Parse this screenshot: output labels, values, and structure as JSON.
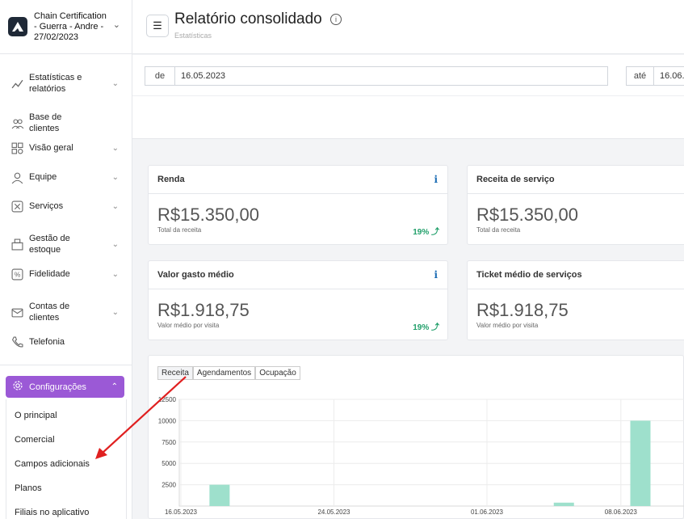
{
  "brand": {
    "name": "Chain Certification - Guerra - Andre - 27/02/2023"
  },
  "sidebar": {
    "items": [
      {
        "label": "Estatísticas e relatórios",
        "icon": "statistics-icon",
        "has_chevron": true
      },
      {
        "label": "Base de clientes",
        "icon": "clients-icon",
        "has_chevron": false
      },
      {
        "label": "Visão geral",
        "icon": "overview-icon",
        "has_chevron": true
      },
      {
        "label": "Equipe",
        "icon": "team-icon",
        "has_chevron": true
      },
      {
        "label": "Serviços",
        "icon": "scissors-icon",
        "has_chevron": true
      },
      {
        "label": "Gestão de estoque",
        "icon": "stock-icon",
        "has_chevron": true
      },
      {
        "label": "Fidelidade",
        "icon": "loyalty-icon",
        "has_chevron": true
      },
      {
        "label": "Contas de clientes",
        "icon": "accounts-icon",
        "has_chevron": true
      },
      {
        "label": "Telefonia",
        "icon": "phone-icon",
        "has_chevron": false
      }
    ],
    "config": {
      "label": "Configurações"
    },
    "config_sub": [
      "O principal",
      "Comercial",
      "Campos adicionais",
      "Planos",
      "Filiais no aplicativo"
    ]
  },
  "header": {
    "title": "Relatório consolidado",
    "breadcrumb": "Estatísticas"
  },
  "filters": {
    "from_label": "de",
    "from_value": "16.05.2023",
    "to_label": "até",
    "to_value": "16.06."
  },
  "cards": [
    {
      "title": "Renda",
      "amount": "R$15.350,00",
      "sub": "Total da receita",
      "pct": "19%",
      "has_info": true
    },
    {
      "title": "Receita de serviço",
      "amount": "R$15.350,00",
      "sub": "Total da receita",
      "pct": "",
      "has_info": false
    },
    {
      "title": "Valor gasto médio",
      "amount": "R$1.918,75",
      "sub": "Valor médio por visita",
      "pct": "19%",
      "has_info": true
    },
    {
      "title": "Ticket médio de serviços",
      "amount": "R$1.918,75",
      "sub": "Valor médio por visita",
      "pct": "",
      "has_info": false
    }
  ],
  "chart_tabs": [
    "Receita",
    "Agendamentos",
    "Ocupação"
  ],
  "colors": {
    "accent": "#9b59d6",
    "bar": "#9ee0cc",
    "positive": "#22a06b",
    "info": "#1e6eb5",
    "annotation_arrow": "#e02020"
  },
  "chart_data": {
    "type": "bar",
    "x_ticks": [
      "16.05.2023",
      "24.05.2023",
      "01.06.2023",
      "08.06.2023"
    ],
    "y_ticks": [
      "2500",
      "5000",
      "7500",
      "10000",
      "12500"
    ],
    "ylim": [
      0,
      12500
    ],
    "points": [
      {
        "x": "18.05.2023",
        "y": 2500
      },
      {
        "x": "05.06.2023",
        "y": 400
      },
      {
        "x": "09.06.2023",
        "y": 10000
      }
    ],
    "grid": true
  }
}
